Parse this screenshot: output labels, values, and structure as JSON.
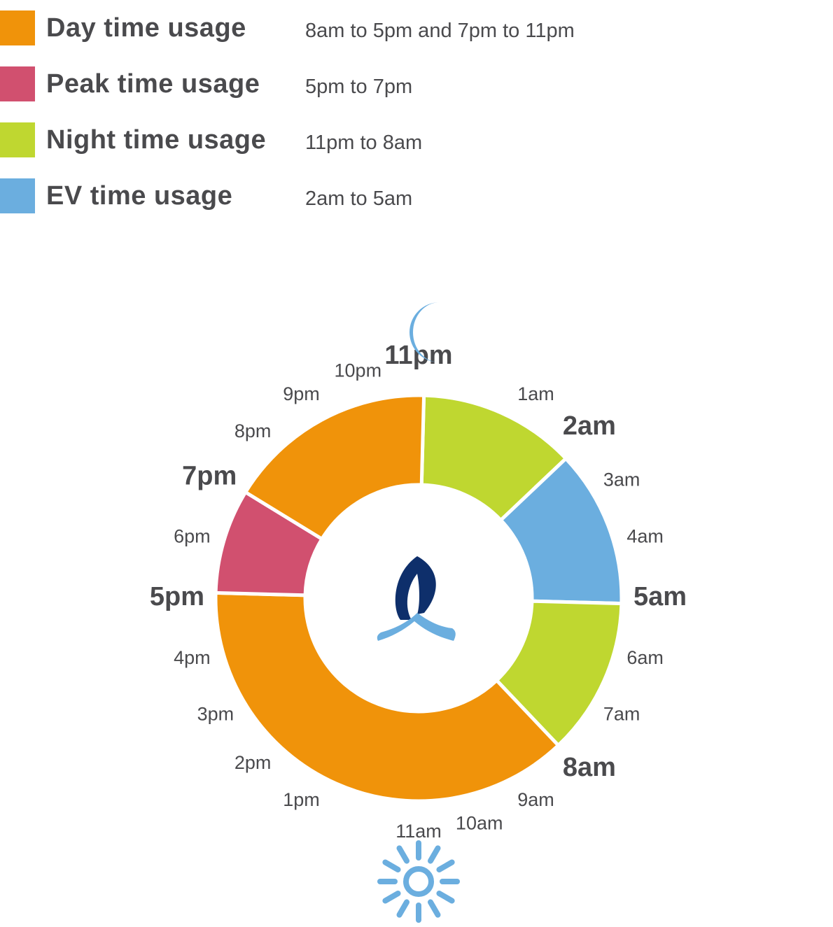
{
  "legend": [
    {
      "label": "Day time usage",
      "range": "8am to 5pm and 7pm to 11pm",
      "color": "#F0930A"
    },
    {
      "label": "Peak time usage",
      "range": "5pm to 7pm",
      "color": "#D1506F"
    },
    {
      "label": "Night time usage",
      "range": "11pm to 8am",
      "color": "#BFD730"
    },
    {
      "label": "EV time usage",
      "range": "2am to 5am",
      "color": "#6BAEDF"
    }
  ],
  "icons": {
    "moon": "crescent-moon-icon",
    "sun": "sun-icon",
    "center_logo": "flame-logo-icon"
  },
  "chart_data": {
    "type": "pie",
    "variant": "donut",
    "title": "",
    "start_hour_at_top": 23,
    "segments": [
      {
        "name": "Night time usage",
        "from": "11pm",
        "to": "2am",
        "start_hour": 23,
        "end_hour": 26,
        "color": "#BFD730"
      },
      {
        "name": "EV time usage",
        "from": "2am",
        "to": "5am",
        "start_hour": 2,
        "end_hour": 5,
        "color": "#6BAEDF"
      },
      {
        "name": "Night time usage",
        "from": "5am",
        "to": "8am",
        "start_hour": 5,
        "end_hour": 8,
        "color": "#BFD730"
      },
      {
        "name": "Day time usage",
        "from": "8am",
        "to": "5pm",
        "start_hour": 8,
        "end_hour": 17,
        "color": "#F0930A"
      },
      {
        "name": "Peak time usage",
        "from": "5pm",
        "to": "7pm",
        "start_hour": 17,
        "end_hour": 19,
        "color": "#D1506F"
      },
      {
        "name": "Day time usage",
        "from": "7pm",
        "to": "11pm",
        "start_hour": 19,
        "end_hour": 23,
        "color": "#F0930A"
      }
    ],
    "hour_labels": [
      {
        "text": "11pm",
        "hour": 23,
        "emphasis": true
      },
      {
        "text": "1am",
        "hour": 1,
        "emphasis": false
      },
      {
        "text": "2am",
        "hour": 2,
        "emphasis": true
      },
      {
        "text": "3am",
        "hour": 3,
        "emphasis": false
      },
      {
        "text": "4am",
        "hour": 4,
        "emphasis": false
      },
      {
        "text": "5am",
        "hour": 5,
        "emphasis": true
      },
      {
        "text": "6am",
        "hour": 6,
        "emphasis": false
      },
      {
        "text": "7am",
        "hour": 7,
        "emphasis": false
      },
      {
        "text": "8am",
        "hour": 8,
        "emphasis": true
      },
      {
        "text": "9am",
        "hour": 9,
        "emphasis": false
      },
      {
        "text": "10am",
        "hour": 10,
        "emphasis": false
      },
      {
        "text": "11am",
        "hour": 11,
        "emphasis": false
      },
      {
        "text": "1pm",
        "hour": 13,
        "emphasis": false
      },
      {
        "text": "2pm",
        "hour": 14,
        "emphasis": false
      },
      {
        "text": "3pm",
        "hour": 15,
        "emphasis": false
      },
      {
        "text": "4pm",
        "hour": 16,
        "emphasis": false
      },
      {
        "text": "5pm",
        "hour": 17,
        "emphasis": true
      },
      {
        "text": "6pm",
        "hour": 18,
        "emphasis": false
      },
      {
        "text": "7pm",
        "hour": 19,
        "emphasis": true
      },
      {
        "text": "8pm",
        "hour": 20,
        "emphasis": false
      },
      {
        "text": "9pm",
        "hour": 21,
        "emphasis": false
      },
      {
        "text": "10pm",
        "hour": 22,
        "emphasis": false
      }
    ]
  }
}
